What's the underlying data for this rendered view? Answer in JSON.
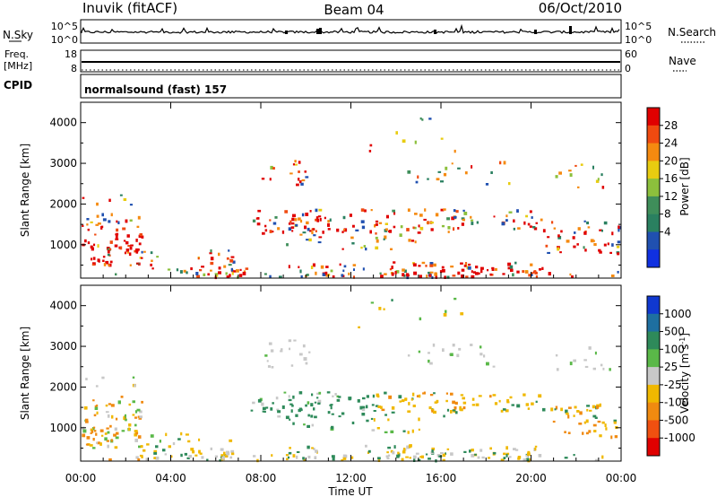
{
  "header": {
    "station": "Inuvik (fitACF)",
    "beam": "Beam 04",
    "date": "06/Oct/2010"
  },
  "top_panels": {
    "nsky": {
      "left_label": "N.Sky",
      "left_ticks": [
        "10^5",
        "10^0"
      ],
      "right_ticks": [
        "10^5",
        "10^0"
      ],
      "right_label": "N.Search",
      "right_line_style": "dotted"
    },
    "freq": {
      "left_label_1": "Freq.",
      "left_label_2": "[MHz]",
      "left_ticks": [
        "18",
        "8"
      ],
      "right_ticks": [
        "60",
        "0"
      ],
      "right_label": "Nave",
      "right_line_style": "dotted"
    },
    "cpid": {
      "label": "CPID",
      "text": "normalsound (fast) 157"
    }
  },
  "chart_data": [
    {
      "type": "heatmap",
      "name": "power",
      "ylabel": "Slant Range [km]",
      "yticks": [
        1000,
        2000,
        3000,
        4000
      ],
      "ylim": [
        180,
        4500
      ],
      "xlim_hours": [
        0,
        24
      ],
      "colorbar": {
        "label": "Power [dB]",
        "ticks": [
          "28",
          "24",
          "20",
          "16",
          "12",
          "8",
          "4"
        ],
        "colors": [
          "#e00000",
          "#f04a10",
          "#f58a10",
          "#e8cc10",
          "#8cc03c",
          "#3f8e5a",
          "#2a8060",
          "#2050b0",
          "#1030e0"
        ]
      }
    },
    {
      "type": "heatmap",
      "name": "velocity",
      "ylabel": "Slant Range [km]",
      "yticks": [
        1000,
        2000,
        3000,
        4000
      ],
      "ylim": [
        180,
        4500
      ],
      "xlim_hours": [
        0,
        24
      ],
      "xlabel": "Time UT",
      "xticks": [
        "00:00",
        "04:00",
        "08:00",
        "12:00",
        "16:00",
        "20:00",
        "00:00"
      ],
      "colorbar": {
        "label": "Velocity [m s",
        "label_sup": "-1",
        "label_end": "]",
        "ticks": [
          "1000",
          "500",
          "100",
          "25",
          "-25",
          "-100",
          "-500",
          "-1000"
        ],
        "colors": [
          "#1038d0",
          "#1e6fa0",
          "#2e8a5a",
          "#5ab848",
          "#c8c8c8",
          "#f0b800",
          "#f08a10",
          "#f05010",
          "#e00000"
        ]
      }
    }
  ]
}
